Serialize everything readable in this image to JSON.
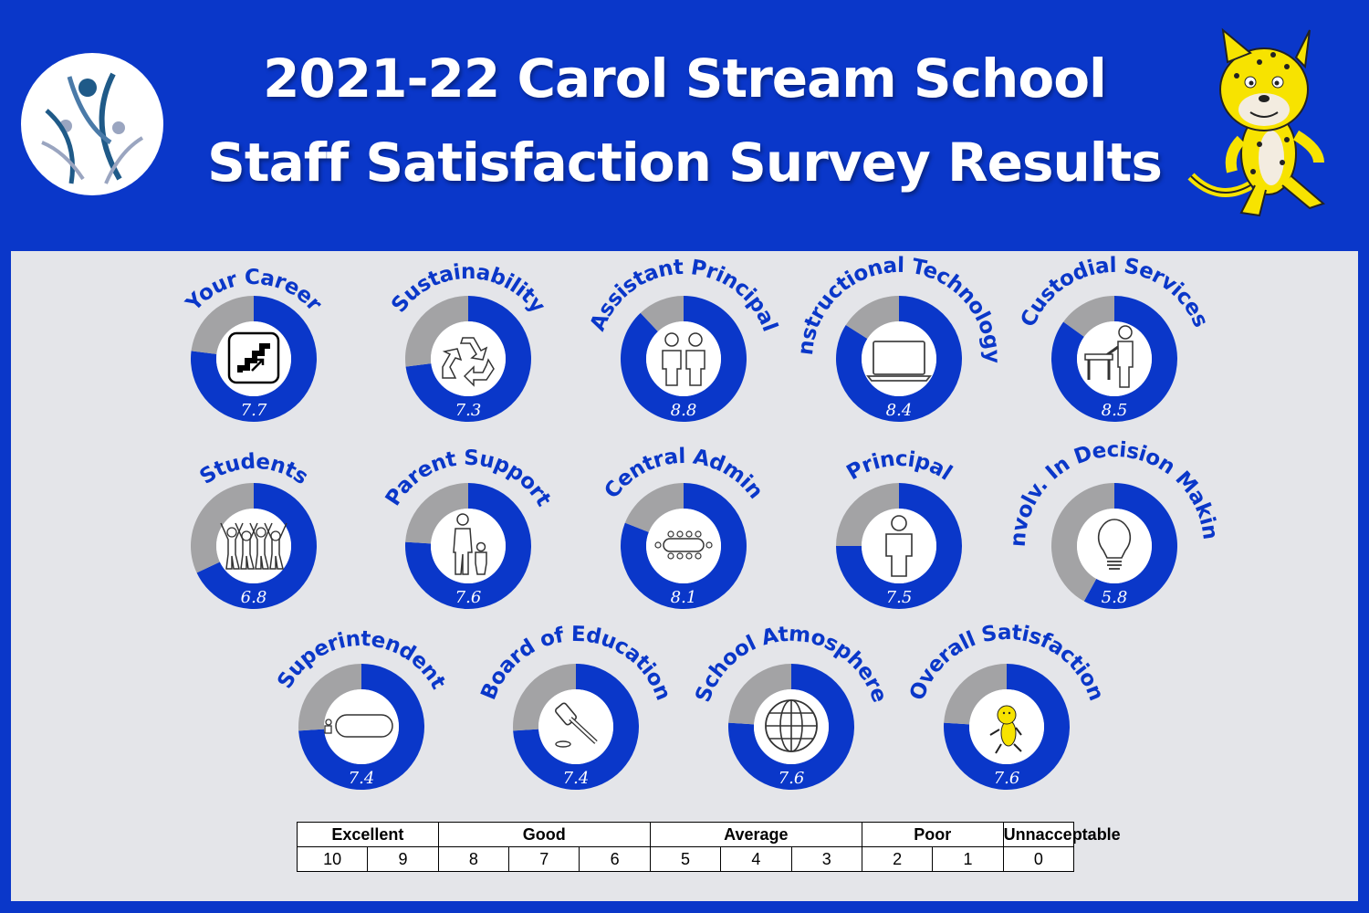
{
  "header": {
    "title_line1": "2021-22 Carol Stream School",
    "title_line2": "Staff Satisfaction Survey Results"
  },
  "colors": {
    "brand_blue": "#0a37c9",
    "remainder_gray": "#a3a3a5",
    "panel_gray": "#e4e5e9",
    "value_text": "#ffffff",
    "mascot_yellow": "#f7e300"
  },
  "chart_data": {
    "type": "donut",
    "scale_max": 10,
    "items": [
      {
        "label": "Your Career",
        "value": 7.7,
        "icon": "stairs-icon"
      },
      {
        "label": "Sustainability",
        "value": 7.3,
        "icon": "recycle-icon"
      },
      {
        "label": "Assistant Principal",
        "value": 8.8,
        "icon": "two-people-icon"
      },
      {
        "label": "Instructional Technology",
        "value": 8.4,
        "icon": "laptop-icon"
      },
      {
        "label": "Custodial Services",
        "value": 8.5,
        "icon": "custodian-icon"
      },
      {
        "label": "Students",
        "value": 6.8,
        "icon": "students-icon"
      },
      {
        "label": "Parent Support",
        "value": 7.6,
        "icon": "parent-child-icon"
      },
      {
        "label": "Central Admin",
        "value": 8.1,
        "icon": "meeting-table-icon"
      },
      {
        "label": "Principal",
        "value": 7.5,
        "icon": "person-icon"
      },
      {
        "label": "Involv. In Decision Making",
        "value": 5.8,
        "icon": "lightbulb-icon"
      },
      {
        "label": "Superintendent",
        "value": 7.4,
        "icon": "desk-person-icon"
      },
      {
        "label": "Board of Education",
        "value": 7.4,
        "icon": "gavel-icon"
      },
      {
        "label": "School Atmosphere",
        "value": 7.6,
        "icon": "globe-icon"
      },
      {
        "label": "Overall Satisfaction",
        "value": 7.6,
        "icon": "mascot-icon"
      }
    ]
  },
  "scale": {
    "categories": [
      {
        "label": "Excellent",
        "span": 2
      },
      {
        "label": "Good",
        "span": 3
      },
      {
        "label": "Average",
        "span": 3
      },
      {
        "label": "Poor",
        "span": 2
      },
      {
        "label": "Unnacceptable",
        "span": 1
      }
    ],
    "values": [
      "10",
      "9",
      "8",
      "7",
      "6",
      "5",
      "4",
      "3",
      "2",
      "1",
      "0"
    ]
  }
}
